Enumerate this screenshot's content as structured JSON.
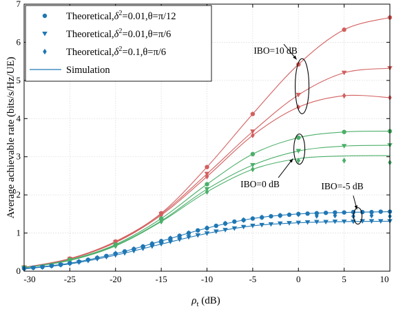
{
  "chart_data": {
    "type": "line",
    "xlabel": "ρ",
    "xlabel_sub": "t",
    "xlabel_unit": " (dB)",
    "ylabel": "Average achievable rate (bits/s/Hz/UE)",
    "xlim": [
      -30,
      10
    ],
    "ylim": [
      0,
      7
    ],
    "x_ticks": [
      "-30",
      "-25",
      "-20",
      "-15",
      "-10",
      "-5",
      "0",
      "5",
      "10"
    ],
    "x_tick_values": [
      -30,
      -25,
      -20,
      -15,
      -10,
      -5,
      0,
      5,
      10
    ],
    "y_ticks": [
      "0",
      "1",
      "2",
      "3",
      "4",
      "5",
      "6",
      "7"
    ],
    "y_tick_values": [
      0,
      1,
      2,
      3,
      4,
      5,
      6,
      7
    ],
    "grid": true,
    "legend_position": "top-left",
    "legend": [
      {
        "prefix": "Theoretical,",
        "d": "δ",
        "sup": "2",
        "rest": "=0.01,θ=π/12",
        "marker": "circle",
        "color": "#1f77b4"
      },
      {
        "prefix": "Theoretical,",
        "d": "δ",
        "sup": "2",
        "rest": "=0.01,θ=π/6",
        "marker": "triangle-down",
        "color": "#1f77b4"
      },
      {
        "prefix": "Theoretical,",
        "d": "δ",
        "sup": "2",
        "rest": "=0.1,θ=π/6",
        "marker": "diamond",
        "color": "#1f77b4"
      },
      {
        "prefix": "Simulation",
        "d": "",
        "sup": "",
        "rest": "",
        "marker": "line",
        "color": "#1f77b4"
      }
    ],
    "annotations": [
      {
        "text": "IBO=10 dB",
        "x": -2.5,
        "y": 5.7
      },
      {
        "text": "IBO=0 dB",
        "x": -4.2,
        "y": 2.2
      },
      {
        "text": "IBO=-5 dB",
        "x": 4.8,
        "y": 2.15
      }
    ],
    "series": [
      {
        "group": "IBO=10 dB",
        "case": "δ²=0.01,θ=π/12",
        "color": "#d35f5f",
        "marker": "circle",
        "x": [
          -30,
          -25,
          -20,
          -15,
          -10,
          -5,
          0,
          5,
          10
        ],
        "y": [
          0.1,
          0.33,
          0.78,
          1.52,
          2.73,
          4.12,
          5.42,
          6.33,
          6.65
        ]
      },
      {
        "group": "IBO=10 dB",
        "case": "δ²=0.01,θ=π/6",
        "color": "#d35f5f",
        "marker": "triangle-down",
        "x": [
          -30,
          -25,
          -20,
          -15,
          -10,
          -5,
          0,
          5,
          10
        ],
        "y": [
          0.1,
          0.32,
          0.76,
          1.5,
          2.55,
          3.66,
          4.62,
          5.2,
          5.32
        ]
      },
      {
        "group": "IBO=10 dB",
        "case": "δ²=0.1,θ=π/6",
        "color": "#d35f5f",
        "marker": "diamond",
        "x": [
          -30,
          -25,
          -20,
          -15,
          -10,
          -5,
          0,
          5,
          10
        ],
        "y": [
          0.1,
          0.32,
          0.75,
          1.47,
          2.48,
          3.56,
          4.3,
          4.6,
          4.55
        ]
      },
      {
        "group": "IBO=0 dB",
        "case": "δ²=0.01,θ=π/12",
        "color": "#4caf6a",
        "marker": "circle",
        "x": [
          -30,
          -25,
          -20,
          -15,
          -10,
          -5,
          0,
          5,
          10
        ],
        "y": [
          0.09,
          0.3,
          0.7,
          1.38,
          2.28,
          3.07,
          3.5,
          3.65,
          3.67
        ]
      },
      {
        "group": "IBO=0 dB",
        "case": "δ²=0.01,θ=π/6",
        "color": "#4caf6a",
        "marker": "triangle-down",
        "x": [
          -30,
          -25,
          -20,
          -15,
          -10,
          -5,
          0,
          5,
          10
        ],
        "y": [
          0.09,
          0.29,
          0.68,
          1.32,
          2.15,
          2.78,
          3.15,
          3.28,
          3.3
        ]
      },
      {
        "group": "IBO=0 dB",
        "case": "δ²=0.1,θ=π/6",
        "color": "#4caf6a",
        "marker": "diamond",
        "x": [
          -30,
          -25,
          -20,
          -15,
          -10,
          -5,
          0,
          5,
          10
        ],
        "y": [
          0.09,
          0.28,
          0.66,
          1.3,
          2.08,
          2.67,
          2.9,
          2.9,
          2.85
        ]
      },
      {
        "group": "IBO=-5 dB",
        "case": "δ²=0.01,θ=π/12",
        "color": "#1f77b4",
        "marker": "circle",
        "x": [
          -30,
          -29,
          -28,
          -27,
          -26,
          -25,
          -24,
          -23,
          -22,
          -21,
          -20,
          -19,
          -18,
          -17,
          -16,
          -15,
          -14,
          -13,
          -12,
          -11,
          -10,
          -9,
          -8,
          -7,
          -6,
          -5,
          -4,
          -3,
          -2,
          -1,
          0,
          1,
          2,
          3,
          4,
          5,
          6,
          7,
          8,
          9,
          10
        ],
        "y": [
          0.07,
          0.09,
          0.11,
          0.14,
          0.17,
          0.21,
          0.25,
          0.3,
          0.35,
          0.4,
          0.46,
          0.52,
          0.58,
          0.65,
          0.72,
          0.79,
          0.86,
          0.93,
          1.0,
          1.07,
          1.13,
          1.19,
          1.25,
          1.3,
          1.34,
          1.38,
          1.41,
          1.44,
          1.46,
          1.48,
          1.5,
          1.51,
          1.52,
          1.53,
          1.54,
          1.54,
          1.55,
          1.55,
          1.55,
          1.56,
          1.56
        ]
      },
      {
        "group": "IBO=-5 dB",
        "case": "δ²=0.01,θ=π/6",
        "color": "#1f77b4",
        "marker": "triangle-down",
        "x": [
          -30,
          -29,
          -28,
          -27,
          -26,
          -25,
          -24,
          -23,
          -22,
          -21,
          -20,
          -19,
          -18,
          -17,
          -16,
          -15,
          -14,
          -13,
          -12,
          -11,
          -10,
          -9,
          -8,
          -7,
          -6,
          -5,
          -4,
          -3,
          -2,
          -1,
          0,
          1,
          2,
          3,
          4,
          5,
          6,
          7,
          8,
          9,
          10
        ],
        "y": [
          0.06,
          0.08,
          0.1,
          0.13,
          0.16,
          0.19,
          0.23,
          0.27,
          0.32,
          0.37,
          0.42,
          0.47,
          0.53,
          0.59,
          0.65,
          0.71,
          0.77,
          0.83,
          0.89,
          0.94,
          0.99,
          1.04,
          1.08,
          1.12,
          1.16,
          1.19,
          1.21,
          1.23,
          1.25,
          1.26,
          1.27,
          1.28,
          1.29,
          1.29,
          1.3,
          1.3,
          1.3,
          1.31,
          1.31,
          1.31,
          1.31
        ]
      },
      {
        "group": "IBO=-5 dB",
        "case": "δ²=0.1,θ=π/6",
        "color": "#1f77b4",
        "marker": "diamond",
        "x": [
          -30,
          -28,
          -26,
          -24,
          -22,
          -20,
          -18,
          -16,
          -14,
          -12,
          -10,
          -8,
          -6,
          -4,
          -2,
          0,
          2,
          4,
          6,
          8,
          10
        ],
        "y": [
          0.07,
          0.11,
          0.17,
          0.25,
          0.35,
          0.46,
          0.58,
          0.72,
          0.86,
          1.0,
          1.13,
          1.25,
          1.34,
          1.41,
          1.46,
          1.49,
          1.45,
          1.46,
          1.44,
          1.46,
          1.44
        ]
      }
    ],
    "simulation_curves": [
      {
        "group": "IBO=10 dB",
        "color": "#d35f5f",
        "x": [
          -30,
          -25,
          -20,
          -15,
          -10,
          -5,
          0,
          5,
          10
        ],
        "y": [
          0.1,
          0.33,
          0.78,
          1.52,
          2.73,
          4.12,
          5.42,
          6.33,
          6.65
        ]
      },
      {
        "group": "IBO=10 dB",
        "color": "#d35f5f",
        "x": [
          -30,
          -25,
          -20,
          -15,
          -10,
          -5,
          0,
          5,
          10
        ],
        "y": [
          0.1,
          0.32,
          0.76,
          1.5,
          2.55,
          3.66,
          4.62,
          5.2,
          5.32
        ]
      },
      {
        "group": "IBO=10 dB",
        "color": "#d35f5f",
        "x": [
          -30,
          -25,
          -20,
          -15,
          -10,
          -5,
          0,
          5,
          10
        ],
        "y": [
          0.1,
          0.32,
          0.75,
          1.47,
          2.48,
          3.56,
          4.3,
          4.6,
          4.55
        ]
      },
      {
        "group": "IBO=0 dB",
        "color": "#4caf6a",
        "x": [
          -30,
          -25,
          -20,
          -15,
          -10,
          -5,
          0,
          5,
          10
        ],
        "y": [
          0.09,
          0.3,
          0.7,
          1.38,
          2.28,
          3.07,
          3.5,
          3.65,
          3.67
        ]
      },
      {
        "group": "IBO=0 dB",
        "color": "#4caf6a",
        "x": [
          -30,
          -25,
          -20,
          -15,
          -10,
          -5,
          0,
          5,
          10
        ],
        "y": [
          0.09,
          0.29,
          0.68,
          1.32,
          2.15,
          2.78,
          3.15,
          3.28,
          3.3
        ]
      },
      {
        "group": "IBO=0 dB",
        "color": "#4caf6a",
        "x": [
          -30,
          -25,
          -20,
          -15,
          -10,
          -5,
          0,
          5,
          10
        ],
        "y": [
          0.09,
          0.28,
          0.66,
          1.3,
          2.08,
          2.67,
          2.95,
          3.02,
          3.03
        ]
      },
      {
        "group": "IBO=-5 dB",
        "color": "#1f77b4",
        "x": [
          -30,
          -25,
          -20,
          -15,
          -10,
          -5,
          0,
          5,
          10
        ],
        "y": [
          0.07,
          0.21,
          0.46,
          0.79,
          1.13,
          1.38,
          1.5,
          1.54,
          1.56
        ]
      },
      {
        "group": "IBO=-5 dB",
        "color": "#1f77b4",
        "x": [
          -30,
          -25,
          -20,
          -15,
          -10,
          -5,
          0,
          5,
          10
        ],
        "y": [
          0.06,
          0.19,
          0.42,
          0.71,
          0.99,
          1.19,
          1.27,
          1.3,
          1.31
        ]
      }
    ]
  }
}
